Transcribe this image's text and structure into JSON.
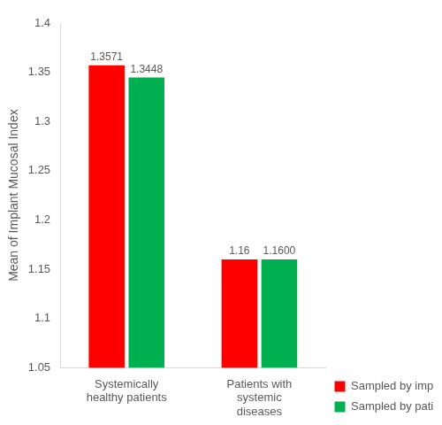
{
  "chart_data": {
    "type": "bar",
    "y_label": "Mean of Implant Mucosal Index",
    "categories": [
      "Systemically healthy patients",
      "Patients with systemic diseases"
    ],
    "series": [
      {
        "name": "Sampled by implant",
        "color": "#ff0000",
        "values": [
          1.3571,
          1.16
        ],
        "value_labels": [
          "1.3571",
          "1.16"
        ]
      },
      {
        "name": "Sampled by patient",
        "color": "#00b050",
        "values": [
          1.3448,
          1.16
        ],
        "value_labels": [
          "1.3448",
          "1.1600"
        ]
      }
    ],
    "ylim": [
      1.05,
      1.4
    ],
    "yticks": [
      1.05,
      1.1,
      1.15,
      1.2,
      1.25,
      1.3,
      1.35,
      1.4
    ],
    "grid": false,
    "legend": "lower right",
    "data_labels": true
  }
}
